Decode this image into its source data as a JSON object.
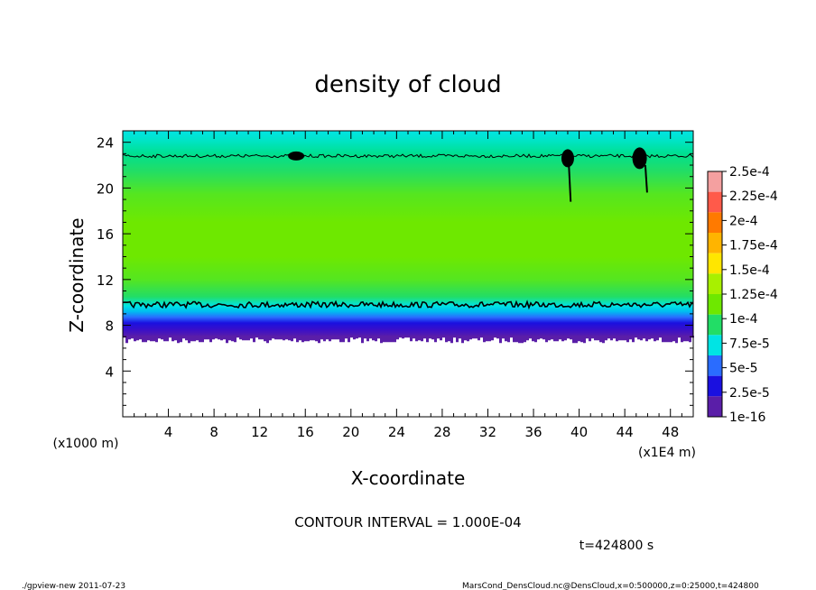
{
  "chart_data": {
    "type": "heatmap",
    "title": "density of cloud",
    "xlabel": "X-coordinate",
    "ylabel": "Z-coordinate",
    "x_unit_label": "(x1E4 m)",
    "y_unit_label": "(x1000 m)",
    "xlim": [
      0,
      50
    ],
    "ylim": [
      0,
      25
    ],
    "x_ticks": [
      4,
      8,
      12,
      16,
      20,
      24,
      28,
      32,
      36,
      40,
      44,
      48
    ],
    "y_ticks": [
      4,
      8,
      12,
      16,
      20,
      24
    ],
    "x_tick_labels": [
      "4",
      "8",
      "12",
      "16",
      "20",
      "24",
      "28",
      "32",
      "36",
      "40",
      "44",
      "48"
    ],
    "y_tick_labels": [
      "4",
      "8",
      "12",
      "16",
      "20",
      "24"
    ],
    "colorbar": {
      "labels": [
        "2.5e-4",
        "2.25e-4",
        "2e-4",
        "1.75e-4",
        "1.5e-4",
        "1.25e-4",
        "1e-4",
        "7.5e-5",
        "5e-5",
        "2.5e-5",
        "1e-16"
      ],
      "values": [
        0.00025,
        0.000225,
        0.0002,
        0.000175,
        0.00015,
        0.000125,
        0.0001,
        7.5e-05,
        5e-05,
        2.5e-05,
        1e-16
      ],
      "colors": [
        "#f4a0a0",
        "#ff5a4a",
        "#ff7a00",
        "#ffb400",
        "#ffe600",
        "#a8f000",
        "#6ee800",
        "#22dd66",
        "#00e4e4",
        "#2a6cff",
        "#1a10e0",
        "#5a1ea8"
      ]
    },
    "profile": [
      {
        "z": 7.0,
        "value": 2e-05,
        "color": "#5a1ea8"
      },
      {
        "z": 7.6,
        "value": 3e-05,
        "color": "#3a0fc8"
      },
      {
        "z": 8.2,
        "value": 4e-05,
        "color": "#1a10e0"
      },
      {
        "z": 8.7,
        "value": 6e-05,
        "color": "#2a6cff"
      },
      {
        "z": 9.2,
        "value": 8e-05,
        "color": "#00bcf0"
      },
      {
        "z": 9.7,
        "value": 9e-05,
        "color": "#00e4e4"
      },
      {
        "z": 10.5,
        "value": 0.00011,
        "color": "#22dd66"
      },
      {
        "z": 12.0,
        "value": 0.00013,
        "color": "#55e620"
      },
      {
        "z": 14.0,
        "value": 0.00014,
        "color": "#6ee800"
      },
      {
        "z": 17.0,
        "value": 0.00014,
        "color": "#6ee800"
      },
      {
        "z": 19.5,
        "value": 0.00013,
        "color": "#55e620"
      },
      {
        "z": 21.5,
        "value": 0.00011,
        "color": "#22dd66"
      },
      {
        "z": 23.0,
        "value": 0.0001,
        "color": "#00e090"
      },
      {
        "z": 24.2,
        "value": 9e-05,
        "color": "#00e4c8"
      },
      {
        "z": 25.0,
        "value": 8e-05,
        "color": "#00e4e4"
      }
    ],
    "cloud_base_z": 7.0,
    "contour_levels_z": [
      9.8,
      22.8
    ],
    "contour_interval_text": "CONTOUR INTERVAL = 1.000E-04",
    "time_text": "t=424800 s"
  },
  "footer": {
    "program": "./gpview-new  2011-07-23",
    "source": "MarsCond_DensCloud.nc@DensCloud,x=0:500000,z=0:25000,t=424800"
  }
}
